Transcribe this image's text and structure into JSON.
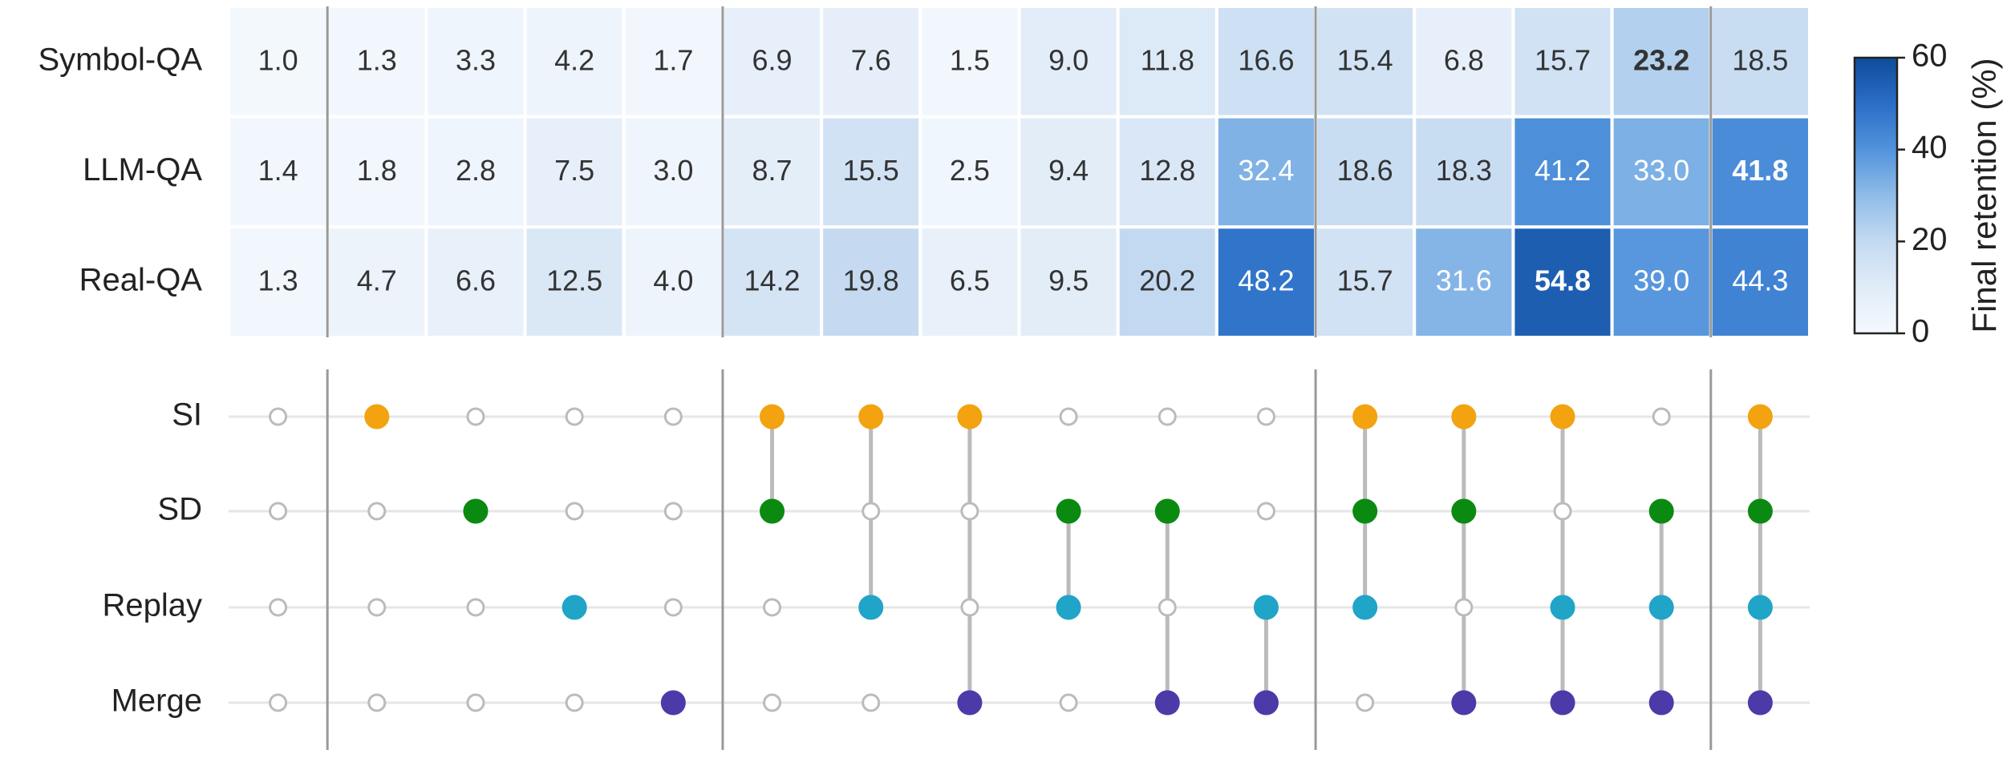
{
  "chart_data": {
    "type": "heatmap",
    "series": [
      {
        "name": "Symbol-QA",
        "values": [
          1.0,
          1.3,
          3.3,
          4.2,
          1.7,
          6.9,
          7.6,
          1.5,
          9.0,
          11.8,
          16.6,
          15.4,
          6.8,
          15.7,
          23.2,
          18.5
        ],
        "value_labels": [
          "1.0",
          "1.3",
          "3.3",
          "4.2",
          "1.7",
          "6.9",
          "7.6",
          "1.5",
          "9.0",
          "11.8",
          "16.6",
          "15.4",
          "6.8",
          "15.7",
          "23.2",
          "18.5"
        ]
      },
      {
        "name": "LLM-QA",
        "values": [
          1.4,
          1.8,
          2.8,
          7.5,
          3.0,
          8.7,
          15.5,
          2.5,
          9.4,
          12.8,
          32.4,
          18.6,
          18.3,
          41.2,
          33.0,
          41.8
        ],
        "value_labels": [
          "1.4",
          "1.8",
          "2.8",
          "7.5",
          "3.0",
          "8.7",
          "15.5",
          "2.5",
          "9.4",
          "12.8",
          "32.4",
          "18.6",
          "18.3",
          "41.2",
          "33.0",
          "41.8"
        ]
      },
      {
        "name": "Real-QA",
        "values": [
          1.3,
          4.7,
          6.6,
          12.5,
          4.0,
          14.2,
          19.8,
          6.5,
          9.5,
          20.2,
          48.2,
          15.7,
          31.6,
          54.8,
          39.0,
          44.3
        ],
        "value_labels": [
          "1.3",
          "4.7",
          "6.6",
          "12.5",
          "4.0",
          "14.2",
          "19.8",
          "6.5",
          "9.5",
          "20.2",
          "48.2",
          "15.7",
          "31.6",
          "54.8",
          "39.0",
          "44.3"
        ]
      }
    ],
    "clim": [
      0,
      60
    ],
    "cticks": [
      0,
      20,
      40,
      60
    ],
    "colorbar_label": "Final retention (%)",
    "colormap": [
      "#f5f9fe",
      "#e1ecf8",
      "#c4daf1",
      "#8fbce8",
      "#5293dc",
      "#2a6ec6",
      "#0e4c9a"
    ],
    "sets": [
      {
        "name": "SI",
        "color": "#f2a30f",
        "members": [
          false,
          true,
          false,
          false,
          false,
          true,
          true,
          true,
          false,
          false,
          false,
          true,
          true,
          true,
          false,
          true
        ]
      },
      {
        "name": "SD",
        "color": "#0b8a12",
        "members": [
          false,
          false,
          true,
          false,
          false,
          true,
          false,
          false,
          true,
          true,
          false,
          true,
          true,
          false,
          true,
          true
        ]
      },
      {
        "name": "Replay",
        "color": "#20a4c8",
        "members": [
          false,
          false,
          false,
          true,
          false,
          false,
          true,
          false,
          true,
          false,
          true,
          true,
          false,
          true,
          true,
          true
        ]
      },
      {
        "name": "Merge",
        "color": "#4c3aa9",
        "members": [
          false,
          false,
          false,
          false,
          true,
          false,
          false,
          true,
          false,
          true,
          true,
          false,
          true,
          true,
          true,
          true
        ]
      }
    ]
  }
}
